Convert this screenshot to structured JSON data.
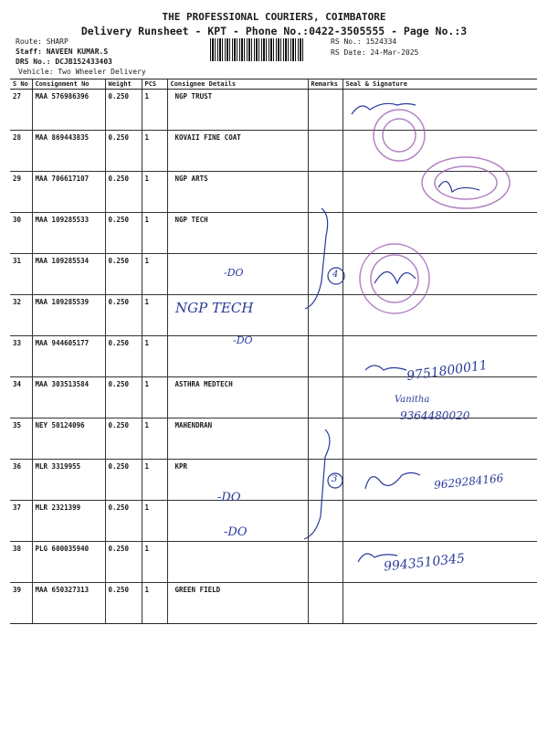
{
  "header": {
    "company": "THE PROFESSIONAL COURIERS, COIMBATORE",
    "subtitle": "Delivery Runsheet - KPT - Phone No.:0422-3505555 - Page No.:3",
    "route": "Route: SHARP",
    "staff": "Staff: NAVEEN KUMAR.S",
    "drs": "DRS No.: DCJB152433403",
    "vehicle": "Vehicle: Two Wheeler Delivery",
    "rs_no": "RS No.: 1524334",
    "rs_date": "RS Date: 24-Mar-2025"
  },
  "table": {
    "columns": [
      "S No",
      "Consignment No",
      "Weight",
      "PCS",
      "Consignee Details",
      "Remarks",
      "Seal & Signature"
    ],
    "rows": [
      {
        "sno": "27",
        "consignment": "MAA 576986396",
        "weight": "0.250",
        "pcs": "1",
        "consignee": "NGP TRUST"
      },
      {
        "sno": "28",
        "consignment": "MAA 869443835",
        "weight": "0.250",
        "pcs": "1",
        "consignee": "KOVAII FINE COAT"
      },
      {
        "sno": "29",
        "consignment": "MAA 706617107",
        "weight": "0.250",
        "pcs": "1",
        "consignee": "NGP ARTS"
      },
      {
        "sno": "30",
        "consignment": "MAA 109285533",
        "weight": "0.250",
        "pcs": "1",
        "consignee": "NGP TECH"
      },
      {
        "sno": "31",
        "consignment": "MAA 109285534",
        "weight": "0.250",
        "pcs": "1",
        "consignee": ""
      },
      {
        "sno": "32",
        "consignment": "MAA 109285539",
        "weight": "0.250",
        "pcs": "1",
        "consignee": ""
      },
      {
        "sno": "33",
        "consignment": "MAA 944605177",
        "weight": "0.250",
        "pcs": "1",
        "consignee": ""
      },
      {
        "sno": "34",
        "consignment": "MAA 303513584",
        "weight": "0.250",
        "pcs": "1",
        "consignee": "ASTHRA MEDTECH"
      },
      {
        "sno": "35",
        "consignment": "NEY 50124096",
        "weight": "0.250",
        "pcs": "1",
        "consignee": "MAHENDRAN"
      },
      {
        "sno": "36",
        "consignment": "MLR 3319955",
        "weight": "0.250",
        "pcs": "1",
        "consignee": "KPR"
      },
      {
        "sno": "37",
        "consignment": "MLR 2321399",
        "weight": "0.250",
        "pcs": "1",
        "consignee": ""
      },
      {
        "sno": "38",
        "consignment": "PLG 600035940",
        "weight": "0.250",
        "pcs": "1",
        "consignee": ""
      },
      {
        "sno": "39",
        "consignment": "MAA 650327313",
        "weight": "0.250",
        "pcs": "1",
        "consignee": "GREEN FIELD"
      }
    ]
  },
  "handwriting": {
    "do_31": "-DO",
    "ngp_tech": "NGP TECH",
    "do_33": "-DO",
    "do_37": "-DO",
    "do_38": "-DO",
    "phone_34": "9751800011",
    "name_35": "Vanitha",
    "phone_35": "9364480020",
    "phone_37": "9629284166",
    "phone_39": "9943510345",
    "remarks_count_1": "4",
    "remarks_count_2": "3"
  },
  "colors": {
    "ink": "#2a3a9a",
    "stamp": "#9a5ab0",
    "text": "#1a1a1a"
  }
}
